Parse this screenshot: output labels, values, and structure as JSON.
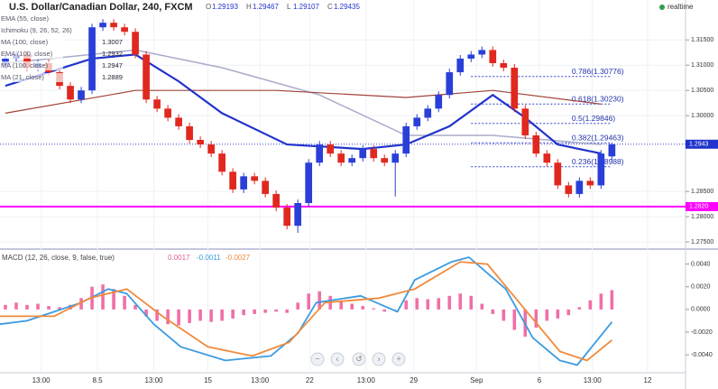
{
  "chart_data": [
    {
      "type": "candlestick",
      "title": "U.S. Dollar/Canadian Dollar, 240, FXCM",
      "ohlc": [
        {
          "label": "O",
          "value": 1.29193
        },
        {
          "label": "H",
          "value": 1.29467
        },
        {
          "label": "L",
          "value": 1.29107
        },
        {
          "label": "C",
          "value": 1.29435
        }
      ],
      "status": "realtime",
      "indicators": [
        "EMA (55, close)",
        "Ichimoku (9, 26, 52, 26)",
        "MA (100, close)",
        "EMA (100, close)",
        "MA (100, close)",
        "MA (21, close)"
      ],
      "indicator_values": [
        null,
        null,
        1.3007,
        1.2932,
        1.2947,
        1.2889
      ],
      "up_color": "#2a3fd8",
      "down_color": "#e0281f",
      "open": [
        1.31,
        1.3113,
        1.3121,
        1.3095,
        1.3104,
        1.3086,
        1.3059,
        1.3032,
        1.305,
        1.3175,
        1.3184,
        1.3175,
        1.3166,
        1.3121,
        1.3032,
        1.3014,
        1.2996,
        1.2979,
        1.2952,
        1.2943,
        1.2925,
        1.2889,
        1.2854,
        1.288,
        1.2871,
        1.2845,
        1.2818,
        1.2782,
        1.2827,
        1.2907,
        1.2943,
        1.2925,
        1.2907,
        1.2916,
        1.2934,
        1.2916,
        1.2907,
        1.2925,
        1.2979,
        1.2996,
        1.3014,
        1.3041,
        1.3086,
        1.3113,
        1.3121,
        1.313,
        1.3104,
        1.3095,
        1.3014,
        1.2961,
        1.2925,
        1.2907,
        1.2862,
        1.2845,
        1.2871,
        1.2862,
        1.29193
      ],
      "high": [
        1.312,
        1.3128,
        1.3128,
        1.3111,
        1.3111,
        1.3093,
        1.3066,
        1.3057,
        1.3182,
        1.3191,
        1.3191,
        1.3182,
        1.3173,
        1.3128,
        1.3039,
        1.3021,
        1.3003,
        1.2986,
        1.2959,
        1.295,
        1.2932,
        1.2896,
        1.2887,
        1.2887,
        1.2878,
        1.2852,
        1.2825,
        1.2834,
        1.2914,
        1.295,
        1.295,
        1.2932,
        1.2923,
        1.2941,
        1.2941,
        1.2923,
        1.2932,
        1.2986,
        1.3003,
        1.3021,
        1.3048,
        1.3093,
        1.312,
        1.3128,
        1.3137,
        1.3137,
        1.3111,
        1.3102,
        1.3021,
        1.2968,
        1.2932,
        1.2914,
        1.2869,
        1.2878,
        1.2878,
        1.2932,
        1.29467
      ],
      "low": [
        1.3093,
        1.3106,
        1.3088,
        1.3088,
        1.3079,
        1.3052,
        1.3025,
        1.3025,
        1.3043,
        1.3168,
        1.3168,
        1.3159,
        1.3114,
        1.3025,
        1.3007,
        1.2989,
        1.2972,
        1.2945,
        1.2936,
        1.2918,
        1.2882,
        1.2847,
        1.2847,
        1.2864,
        1.2838,
        1.2811,
        1.2775,
        1.2768,
        1.282,
        1.29,
        1.2918,
        1.29,
        1.29,
        1.2909,
        1.2909,
        1.29,
        1.284,
        1.2918,
        1.2972,
        1.2989,
        1.3007,
        1.3034,
        1.3079,
        1.3106,
        1.3114,
        1.3097,
        1.3088,
        1.3007,
        1.2954,
        1.2918,
        1.29,
        1.2855,
        1.2838,
        1.2838,
        1.2855,
        1.2855,
        1.29107
      ],
      "close": [
        1.3113,
        1.3121,
        1.3095,
        1.3104,
        1.3086,
        1.3059,
        1.3032,
        1.305,
        1.3175,
        1.3184,
        1.3175,
        1.3166,
        1.3121,
        1.3032,
        1.3014,
        1.2996,
        1.2979,
        1.2952,
        1.2943,
        1.2925,
        1.2889,
        1.2854,
        1.288,
        1.2871,
        1.2845,
        1.2818,
        1.2782,
        1.2827,
        1.2907,
        1.2943,
        1.2925,
        1.2907,
        1.2916,
        1.2934,
        1.2916,
        1.2907,
        1.2925,
        1.2979,
        1.2996,
        1.3014,
        1.3041,
        1.3086,
        1.3113,
        1.3121,
        1.313,
        1.3104,
        1.3095,
        1.3014,
        1.2961,
        1.2925,
        1.2907,
        1.2862,
        1.2845,
        1.2871,
        1.2862,
        1.2925,
        1.29435
      ],
      "lines": [
        {
          "color": "#a9abc9",
          "width": 1.5,
          "x": [
            0,
            12,
            20,
            29,
            37,
            45,
            55
          ],
          "values": [
            1.3104,
            1.313,
            1.3095,
            1.3041,
            1.2961,
            1.2961,
            1.2943
          ]
        },
        {
          "color": "#a0443a",
          "width": 1.2,
          "x": [
            0,
            12,
            25,
            37,
            45,
            55
          ],
          "values": [
            1.3005,
            1.305,
            1.305,
            1.3036,
            1.305,
            1.3023
          ]
        },
        {
          "color": "#2233cc",
          "width": 2.2,
          "x": [
            0,
            8,
            12,
            16,
            20,
            26,
            33,
            37,
            41,
            45,
            48,
            51,
            55
          ],
          "values": [
            1.3059,
            1.3113,
            1.3121,
            1.3068,
            1.3005,
            1.2943,
            1.2934,
            1.2943,
            1.2979,
            1.3041,
            1.2996,
            1.2943,
            1.2925
          ]
        }
      ],
      "levels": [
        {
          "value": 1.30776,
          "label": "0.786(1.30776)"
        },
        {
          "value": 1.3023,
          "label": "0.618(1.30230)"
        },
        {
          "value": 1.29846,
          "label": "0.5(1.29846)"
        },
        {
          "value": 1.29463,
          "label": "0.382(1.29463)"
        },
        {
          "value": 1.28988,
          "label": "0.236(1.28988)"
        }
      ],
      "hline": {
        "value": 1.282,
        "label": "1.2820",
        "color": "#ff00ff"
      },
      "last_price": {
        "value": 1.29435,
        "label": "1.2943"
      },
      "xlim": [
        -0.5,
        62.8
      ],
      "ylim": [
        1.2743,
        1.3229
      ],
      "yticks": [
        {
          "value": 1.275,
          "label": "1.27500"
        },
        {
          "value": 1.28,
          "label": "1.28000"
        },
        {
          "value": 1.285,
          "label": "1.28500"
        },
        {
          "value": 1.3,
          "label": "1.30000"
        },
        {
          "value": 1.305,
          "label": "1.30500"
        },
        {
          "value": 1.31,
          "label": "1.31000"
        },
        {
          "value": 1.315,
          "label": "1.31500"
        }
      ],
      "xticks": [
        {
          "value": 3.3,
          "label": "13:00"
        },
        8.5,
        {
          "value": 13.7,
          "label": "13:00"
        },
        {
          "value": 18.7,
          "label": "15"
        },
        {
          "value": 23.5,
          "label": "13:00"
        },
        {
          "value": 28.1,
          "label": "22"
        },
        {
          "value": 33.3,
          "label": "13:00"
        },
        {
          "value": 37.7,
          "label": "29"
        },
        {
          "value": 43.5,
          "label": "Sep"
        },
        {
          "value": 49.3,
          "label": "6"
        },
        {
          "value": 54.2,
          "label": "13:00"
        },
        {
          "value": 59.3,
          "label": "12"
        }
      ]
    },
    {
      "type": "macd",
      "title": "MACD (12, 26, close, 9, false, true)",
      "readouts": [
        0.0017,
        -0.0011,
        -0.0027
      ],
      "readout_colors": [
        "#e0609a",
        "#3a9be0",
        "#f08a3c"
      ],
      "histogram": {
        "color": "#f06fa8",
        "values": [
          0.0004,
          0.0006,
          0.0004,
          0.0005,
          0.0003,
          0.0002,
          0.0004,
          0.001,
          0.002,
          0.0022,
          0.0018,
          0.0012,
          0.0004,
          -0.0006,
          -0.001,
          -0.0013,
          -0.0014,
          -0.0012,
          -0.001,
          -0.0011,
          -0.001,
          -0.0008,
          -0.0005,
          -0.0004,
          -0.0003,
          -0.0002,
          -0.0003,
          0.0006,
          0.0014,
          0.0016,
          0.0012,
          0.0008,
          0.0005,
          0.0003,
          0.0001,
          -0.0002,
          0.0,
          0.0008,
          0.001,
          0.0009,
          0.001,
          0.0012,
          0.0014,
          0.0012,
          0.0005,
          -0.0004,
          -0.001,
          -0.0018,
          -0.0024,
          -0.0016,
          -0.001,
          -0.0008,
          -0.0005,
          0.0002,
          0.0008,
          0.0014,
          0.0017
        ]
      },
      "series": [
        {
          "color": "#3a9be0",
          "x": [
            -0.5,
            2,
            4.5,
            7,
            9.5,
            11.2,
            13.7,
            16.2,
            20.3,
            24.5,
            27,
            28.7,
            32.8,
            36.2,
            37.8,
            41.2,
            42.8,
            46.2,
            48.7,
            51.2,
            52.8,
            56
          ],
          "values": [
            -0.0013,
            -0.001,
            -0.0002,
            0.0006,
            0.0018,
            0.0014,
            -0.0013,
            -0.0033,
            -0.0045,
            -0.0041,
            -0.0021,
            0.0006,
            0.0012,
            -0.0002,
            0.0026,
            0.0042,
            0.0046,
            0.0018,
            -0.0025,
            -0.0045,
            -0.0049,
            -0.0011
          ]
        },
        {
          "color": "#f08a3c",
          "x": [
            -0.5,
            4.5,
            7.8,
            11.2,
            14.5,
            18.7,
            22.8,
            26.2,
            29.5,
            34.5,
            37.8,
            42,
            44.5,
            47.8,
            51.2,
            53.7,
            56
          ],
          "values": [
            -0.0006,
            -0.0006,
            0.001,
            0.0018,
            -0.0006,
            -0.0033,
            -0.0041,
            -0.0029,
            0.0006,
            0.001,
            0.0018,
            0.0042,
            0.004,
            0.0002,
            -0.0037,
            -0.0045,
            -0.0027
          ]
        }
      ],
      "ylim": [
        -0.0055,
        0.005
      ],
      "yticks": [
        {
          "value": 0.004,
          "label": "0.0040"
        },
        {
          "value": 0.002,
          "label": "0.0020"
        },
        {
          "value": 0,
          "label": "0.0000"
        },
        {
          "value": -0.002,
          "label": "-0.0020"
        },
        {
          "value": -0.004,
          "label": "-0.0040"
        }
      ]
    }
  ]
}
